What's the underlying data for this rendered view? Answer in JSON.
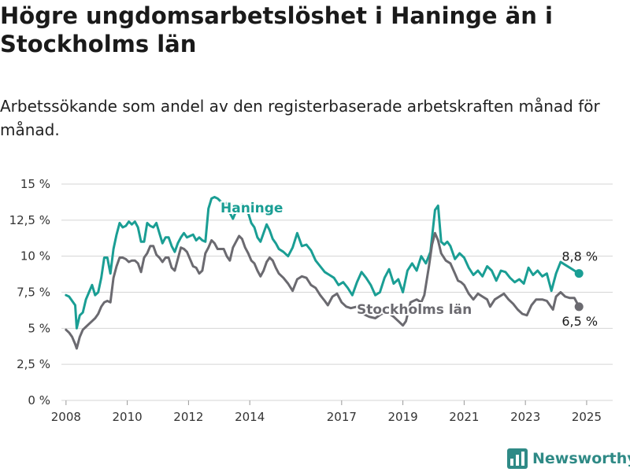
{
  "title": "Högre ungdomsarbetslöshet i Haninge än i Stockholms län",
  "subtitle": "Arbetssökande som andel av den registerbaserade arbetskraften månad för månad.",
  "brand": {
    "name": "Newsworthy",
    "icon": "newsworthy-logo-icon",
    "color": "#2f8a86"
  },
  "chart_data": {
    "type": "line",
    "ylim": [
      0,
      15
    ],
    "xlim": [
      2007.85,
      2025.85
    ],
    "y_ticks": [
      {
        "value": 0,
        "label": "0 %"
      },
      {
        "value": 2.5,
        "label": "2,5 %"
      },
      {
        "value": 5,
        "label": "5 %"
      },
      {
        "value": 7.5,
        "label": "7,5 %"
      },
      {
        "value": 10,
        "label": "10 %"
      },
      {
        "value": 12.5,
        "label": "12,5 %"
      },
      {
        "value": 15,
        "label": "15 %"
      }
    ],
    "x_ticks": [
      {
        "value": 2008,
        "label": "2008"
      },
      {
        "value": 2010,
        "label": "2010"
      },
      {
        "value": 2012,
        "label": "2012"
      },
      {
        "value": 2014,
        "label": "2014"
      },
      {
        "value": 2017,
        "label": "2017"
      },
      {
        "value": 2019,
        "label": "2019"
      },
      {
        "value": 2021,
        "label": "2021"
      },
      {
        "value": 2023,
        "label": "2023"
      },
      {
        "value": 2025,
        "label": "2025"
      }
    ],
    "grid": true,
    "series": [
      {
        "name": "Haninge",
        "color": "#1a9e94",
        "end_label": "8,8 %",
        "points": [
          [
            2008.0,
            7.3
          ],
          [
            2008.1,
            7.2
          ],
          [
            2008.2,
            6.9
          ],
          [
            2008.3,
            6.6
          ],
          [
            2008.35,
            5.0
          ],
          [
            2008.45,
            5.9
          ],
          [
            2008.55,
            6.1
          ],
          [
            2008.65,
            7.0
          ],
          [
            2008.75,
            7.5
          ],
          [
            2008.85,
            8.0
          ],
          [
            2008.95,
            7.3
          ],
          [
            2009.05,
            7.5
          ],
          [
            2009.15,
            8.5
          ],
          [
            2009.25,
            9.9
          ],
          [
            2009.35,
            9.9
          ],
          [
            2009.45,
            8.8
          ],
          [
            2009.55,
            10.5
          ],
          [
            2009.65,
            11.5
          ],
          [
            2009.75,
            12.3
          ],
          [
            2009.85,
            12.0
          ],
          [
            2009.95,
            12.1
          ],
          [
            2010.05,
            12.4
          ],
          [
            2010.15,
            12.2
          ],
          [
            2010.25,
            12.4
          ],
          [
            2010.35,
            12.0
          ],
          [
            2010.45,
            11.0
          ],
          [
            2010.55,
            11.0
          ],
          [
            2010.65,
            12.3
          ],
          [
            2010.75,
            12.1
          ],
          [
            2010.85,
            12.0
          ],
          [
            2010.95,
            12.3
          ],
          [
            2011.05,
            11.6
          ],
          [
            2011.15,
            10.9
          ],
          [
            2011.25,
            11.3
          ],
          [
            2011.35,
            11.3
          ],
          [
            2011.45,
            10.7
          ],
          [
            2011.55,
            10.3
          ],
          [
            2011.65,
            10.9
          ],
          [
            2011.75,
            11.3
          ],
          [
            2011.85,
            11.6
          ],
          [
            2011.95,
            11.3
          ],
          [
            2012.05,
            11.4
          ],
          [
            2012.15,
            11.5
          ],
          [
            2012.25,
            11.1
          ],
          [
            2012.35,
            11.3
          ],
          [
            2012.45,
            11.1
          ],
          [
            2012.55,
            11.0
          ],
          [
            2012.65,
            13.3
          ],
          [
            2012.75,
            14.0
          ],
          [
            2012.85,
            14.1
          ],
          [
            2012.95,
            14.0
          ],
          [
            2013.05,
            13.8
          ],
          [
            2013.15,
            13.6
          ],
          [
            2013.25,
            13.7
          ],
          [
            2013.35,
            13.0
          ],
          [
            2013.45,
            12.6
          ],
          [
            2013.55,
            13.1
          ],
          [
            2013.65,
            13.4
          ],
          [
            2013.75,
            13.6
          ],
          [
            2013.85,
            13.2
          ],
          [
            2013.95,
            13.0
          ],
          [
            2014.05,
            12.3
          ],
          [
            2014.15,
            12.0
          ],
          [
            2014.25,
            11.3
          ],
          [
            2014.35,
            11.0
          ],
          [
            2014.45,
            11.6
          ],
          [
            2014.55,
            12.2
          ],
          [
            2014.65,
            11.8
          ],
          [
            2014.75,
            11.2
          ],
          [
            2014.85,
            10.9
          ],
          [
            2014.95,
            10.5
          ],
          [
            2015.1,
            10.3
          ],
          [
            2015.25,
            10.0
          ],
          [
            2015.4,
            10.6
          ],
          [
            2015.55,
            11.6
          ],
          [
            2015.7,
            10.7
          ],
          [
            2015.85,
            10.8
          ],
          [
            2016.0,
            10.4
          ],
          [
            2016.15,
            9.7
          ],
          [
            2016.3,
            9.3
          ],
          [
            2016.45,
            8.9
          ],
          [
            2016.6,
            8.7
          ],
          [
            2016.75,
            8.5
          ],
          [
            2016.9,
            8.0
          ],
          [
            2017.05,
            8.2
          ],
          [
            2017.2,
            7.8
          ],
          [
            2017.35,
            7.3
          ],
          [
            2017.5,
            8.2
          ],
          [
            2017.65,
            8.9
          ],
          [
            2017.8,
            8.5
          ],
          [
            2017.95,
            8.0
          ],
          [
            2018.1,
            7.3
          ],
          [
            2018.25,
            7.5
          ],
          [
            2018.4,
            8.5
          ],
          [
            2018.55,
            9.1
          ],
          [
            2018.7,
            8.1
          ],
          [
            2018.85,
            8.4
          ],
          [
            2019.0,
            7.5
          ],
          [
            2019.15,
            9.0
          ],
          [
            2019.3,
            9.5
          ],
          [
            2019.45,
            9.0
          ],
          [
            2019.6,
            10.0
          ],
          [
            2019.75,
            9.5
          ],
          [
            2019.9,
            10.3
          ],
          [
            2020.05,
            13.2
          ],
          [
            2020.15,
            13.5
          ],
          [
            2020.25,
            11.0
          ],
          [
            2020.35,
            10.8
          ],
          [
            2020.45,
            11.0
          ],
          [
            2020.55,
            10.7
          ],
          [
            2020.7,
            9.8
          ],
          [
            2020.85,
            10.2
          ],
          [
            2021.0,
            9.9
          ],
          [
            2021.15,
            9.2
          ],
          [
            2021.3,
            8.7
          ],
          [
            2021.45,
            9.0
          ],
          [
            2021.6,
            8.6
          ],
          [
            2021.75,
            9.3
          ],
          [
            2021.9,
            9.0
          ],
          [
            2022.05,
            8.3
          ],
          [
            2022.2,
            9.0
          ],
          [
            2022.35,
            8.9
          ],
          [
            2022.5,
            8.5
          ],
          [
            2022.65,
            8.2
          ],
          [
            2022.8,
            8.4
          ],
          [
            2022.95,
            8.1
          ],
          [
            2023.1,
            9.2
          ],
          [
            2023.25,
            8.7
          ],
          [
            2023.4,
            9.0
          ],
          [
            2023.55,
            8.6
          ],
          [
            2023.7,
            8.8
          ],
          [
            2023.85,
            7.6
          ],
          [
            2024.0,
            8.8
          ],
          [
            2024.15,
            9.6
          ],
          [
            2024.3,
            9.4
          ],
          [
            2024.45,
            9.2
          ],
          [
            2024.6,
            9.0
          ],
          [
            2024.75,
            8.8
          ]
        ]
      },
      {
        "name": "Stockholms län",
        "color": "#6b6a70",
        "end_label": "6,5 %",
        "points": [
          [
            2008.0,
            4.9
          ],
          [
            2008.1,
            4.7
          ],
          [
            2008.2,
            4.4
          ],
          [
            2008.3,
            3.9
          ],
          [
            2008.35,
            3.6
          ],
          [
            2008.45,
            4.4
          ],
          [
            2008.55,
            4.9
          ],
          [
            2008.65,
            5.1
          ],
          [
            2008.75,
            5.3
          ],
          [
            2008.85,
            5.5
          ],
          [
            2008.95,
            5.7
          ],
          [
            2009.05,
            6.0
          ],
          [
            2009.15,
            6.5
          ],
          [
            2009.25,
            6.8
          ],
          [
            2009.35,
            6.9
          ],
          [
            2009.45,
            6.8
          ],
          [
            2009.55,
            8.5
          ],
          [
            2009.65,
            9.3
          ],
          [
            2009.75,
            9.9
          ],
          [
            2009.85,
            9.9
          ],
          [
            2009.95,
            9.8
          ],
          [
            2010.05,
            9.6
          ],
          [
            2010.15,
            9.7
          ],
          [
            2010.25,
            9.7
          ],
          [
            2010.35,
            9.5
          ],
          [
            2010.45,
            8.9
          ],
          [
            2010.55,
            9.9
          ],
          [
            2010.65,
            10.2
          ],
          [
            2010.75,
            10.7
          ],
          [
            2010.85,
            10.7
          ],
          [
            2010.95,
            10.1
          ],
          [
            2011.05,
            9.9
          ],
          [
            2011.15,
            9.6
          ],
          [
            2011.25,
            9.9
          ],
          [
            2011.35,
            9.9
          ],
          [
            2011.45,
            9.2
          ],
          [
            2011.55,
            9.0
          ],
          [
            2011.65,
            9.8
          ],
          [
            2011.75,
            10.6
          ],
          [
            2011.85,
            10.5
          ],
          [
            2011.95,
            10.3
          ],
          [
            2012.05,
            9.8
          ],
          [
            2012.15,
            9.3
          ],
          [
            2012.25,
            9.2
          ],
          [
            2012.35,
            8.8
          ],
          [
            2012.45,
            9.0
          ],
          [
            2012.55,
            10.2
          ],
          [
            2012.65,
            10.6
          ],
          [
            2012.75,
            11.1
          ],
          [
            2012.85,
            10.9
          ],
          [
            2012.95,
            10.5
          ],
          [
            2013.05,
            10.5
          ],
          [
            2013.15,
            10.5
          ],
          [
            2013.25,
            10.0
          ],
          [
            2013.35,
            9.7
          ],
          [
            2013.45,
            10.6
          ],
          [
            2013.55,
            11.0
          ],
          [
            2013.65,
            11.4
          ],
          [
            2013.75,
            11.2
          ],
          [
            2013.85,
            10.6
          ],
          [
            2013.95,
            10.2
          ],
          [
            2014.05,
            9.7
          ],
          [
            2014.15,
            9.5
          ],
          [
            2014.25,
            9.0
          ],
          [
            2014.35,
            8.6
          ],
          [
            2014.45,
            9.0
          ],
          [
            2014.55,
            9.6
          ],
          [
            2014.65,
            9.9
          ],
          [
            2014.75,
            9.7
          ],
          [
            2014.85,
            9.2
          ],
          [
            2014.95,
            8.8
          ],
          [
            2015.1,
            8.5
          ],
          [
            2015.25,
            8.1
          ],
          [
            2015.4,
            7.6
          ],
          [
            2015.55,
            8.4
          ],
          [
            2015.7,
            8.6
          ],
          [
            2015.85,
            8.5
          ],
          [
            2016.0,
            8.0
          ],
          [
            2016.15,
            7.8
          ],
          [
            2016.3,
            7.3
          ],
          [
            2016.45,
            6.9
          ],
          [
            2016.55,
            6.6
          ],
          [
            2016.7,
            7.2
          ],
          [
            2016.85,
            7.4
          ],
          [
            2017.0,
            6.8
          ],
          [
            2017.15,
            6.5
          ],
          [
            2017.3,
            6.4
          ],
          [
            2017.5,
            6.5
          ],
          [
            2017.7,
            6.0
          ],
          [
            2017.9,
            5.8
          ],
          [
            2018.1,
            5.7
          ],
          [
            2018.3,
            6.0
          ],
          [
            2018.5,
            6.1
          ],
          [
            2018.7,
            5.8
          ],
          [
            2018.85,
            5.5
          ],
          [
            2019.0,
            5.2
          ],
          [
            2019.1,
            5.5
          ],
          [
            2019.25,
            6.8
          ],
          [
            2019.45,
            7.0
          ],
          [
            2019.6,
            6.8
          ],
          [
            2019.7,
            7.3
          ],
          [
            2019.85,
            9.3
          ],
          [
            2019.95,
            10.8
          ],
          [
            2020.05,
            11.6
          ],
          [
            2020.15,
            11.1
          ],
          [
            2020.25,
            10.2
          ],
          [
            2020.4,
            9.7
          ],
          [
            2020.55,
            9.5
          ],
          [
            2020.7,
            8.8
          ],
          [
            2020.8,
            8.3
          ],
          [
            2020.9,
            8.2
          ],
          [
            2021.0,
            8.0
          ],
          [
            2021.15,
            7.4
          ],
          [
            2021.3,
            7.0
          ],
          [
            2021.45,
            7.4
          ],
          [
            2021.6,
            7.2
          ],
          [
            2021.75,
            7.0
          ],
          [
            2021.85,
            6.5
          ],
          [
            2022.0,
            7.0
          ],
          [
            2022.15,
            7.2
          ],
          [
            2022.3,
            7.4
          ],
          [
            2022.45,
            7.0
          ],
          [
            2022.6,
            6.7
          ],
          [
            2022.75,
            6.3
          ],
          [
            2022.9,
            6.0
          ],
          [
            2023.05,
            5.9
          ],
          [
            2023.2,
            6.6
          ],
          [
            2023.35,
            7.0
          ],
          [
            2023.55,
            7.0
          ],
          [
            2023.7,
            6.9
          ],
          [
            2023.8,
            6.6
          ],
          [
            2023.9,
            6.3
          ],
          [
            2024.0,
            7.2
          ],
          [
            2024.15,
            7.5
          ],
          [
            2024.3,
            7.2
          ],
          [
            2024.45,
            7.1
          ],
          [
            2024.6,
            7.1
          ],
          [
            2024.75,
            6.5
          ]
        ]
      }
    ]
  }
}
